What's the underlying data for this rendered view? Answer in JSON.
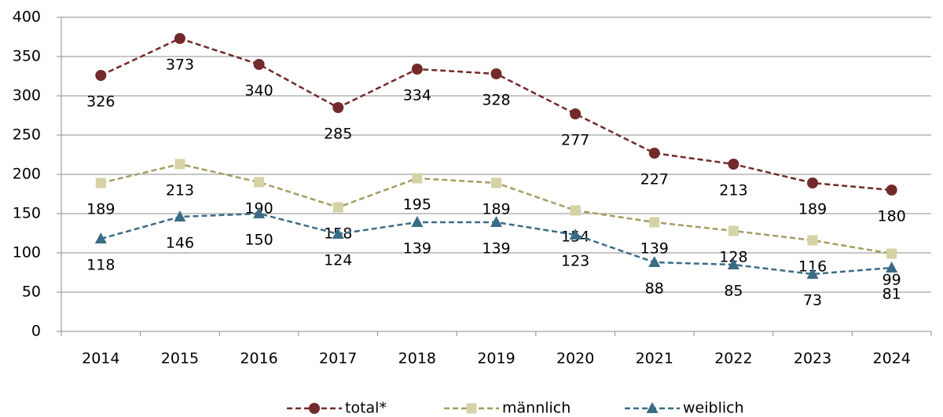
{
  "chart_data": {
    "type": "line",
    "categories": [
      "2014",
      "2015",
      "2016",
      "2017",
      "2018",
      "2019",
      "2020",
      "2021",
      "2022",
      "2023",
      "2024"
    ],
    "series": [
      {
        "name": "total*",
        "color": "#722a2a",
        "marker": "circle",
        "values": [
          326,
          373,
          340,
          285,
          334,
          328,
          277,
          227,
          213,
          189,
          180
        ]
      },
      {
        "name": "männlich",
        "color": "#a39d62",
        "marker_color": "#d5d2a6",
        "marker": "square",
        "values": [
          189,
          213,
          190,
          158,
          195,
          189,
          154,
          139,
          128,
          116,
          99
        ]
      },
      {
        "name": "weiblich",
        "color": "#3b6c85",
        "marker": "triangle",
        "values": [
          118,
          146,
          150,
          124,
          139,
          139,
          123,
          88,
          85,
          73,
          81
        ]
      }
    ],
    "ylim": [
      0,
      400
    ],
    "yticks": [
      0,
      50,
      100,
      150,
      200,
      250,
      300,
      350,
      400
    ],
    "grid": true,
    "legend": "bottom"
  }
}
